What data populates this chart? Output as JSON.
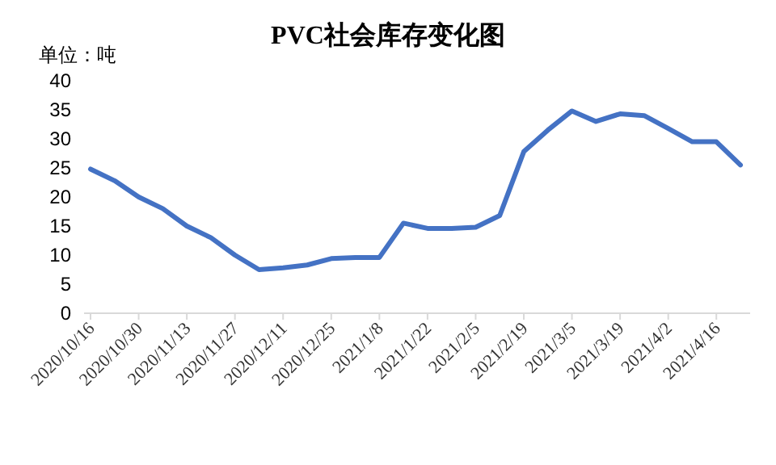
{
  "chart_data": {
    "type": "line",
    "title": "PVC社会库存变化图",
    "ylabel": "单位：吨",
    "categories": [
      "2020/10/16",
      null,
      "2020/10/30",
      null,
      "2020/11/13",
      null,
      "2020/11/27",
      null,
      "2020/12/11",
      null,
      "2020/12/25",
      null,
      "2021/1/8",
      null,
      "2021/1/22",
      null,
      "2021/2/5",
      null,
      "2021/2/19",
      null,
      "2021/3/5",
      null,
      "2021/3/19",
      null,
      "2021/4/2",
      null,
      "2021/4/16",
      null
    ],
    "series": [
      {
        "color": "#4472c4",
        "values": [
          24.8,
          22.8,
          20,
          18,
          15,
          13,
          10,
          7.5,
          7.8,
          8.3,
          9.4,
          9.6,
          9.6,
          15.5,
          14.6,
          14.6,
          14.8,
          16.8,
          27.8,
          31.5,
          34.8,
          33,
          34.3,
          34,
          31.8,
          29.5,
          29.5,
          25.5
        ]
      }
    ],
    "ylim": [
      0,
      40
    ],
    "yticks": [
      0,
      5,
      10,
      15,
      20,
      25,
      30,
      35,
      40
    ],
    "grid": false,
    "marker": "none",
    "line_style": "solid"
  }
}
